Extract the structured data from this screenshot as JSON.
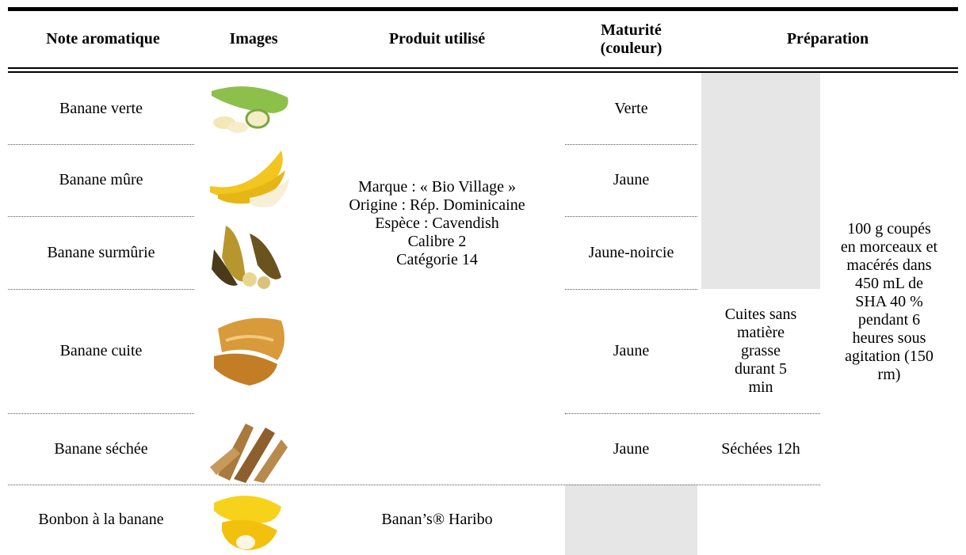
{
  "table": {
    "headers": [
      "Note aromatique",
      "Images",
      "Produit utilisé",
      [
        "Maturité",
        "(couleur)"
      ],
      "Préparation"
    ],
    "rows": [
      {
        "note": "Banane verte",
        "maturite": "Verte"
      },
      {
        "note": "Banane mûre",
        "maturite": "Jaune"
      },
      {
        "note": "Banane surmûrie",
        "maturite": "Jaune-noircie"
      },
      {
        "note": "Banane cuite",
        "maturite": "Jaune"
      },
      {
        "note": "Banane séchée",
        "maturite": "Jaune"
      },
      {
        "note": "Bonbon à la banane"
      }
    ],
    "produit": [
      "Marque : « Bio Village »",
      "Origine : Rép. Dominicaine",
      "Espèce : Cavendish",
      "Calibre 2",
      "Catégorie 14"
    ],
    "produit_bonbon": "Banan’s® Haribo",
    "cuisson": [
      "Cuites sans",
      "matière",
      "grasse",
      "durant 5",
      "min"
    ],
    "sechage": "Séchées 12h",
    "preparation": [
      "100 g coupés",
      "en morceaux et",
      "macérés dans",
      "450 mL de",
      "SHA 40 %",
      "pendant 6",
      "heures sous",
      "agitation (150",
      "rm)"
    ]
  }
}
